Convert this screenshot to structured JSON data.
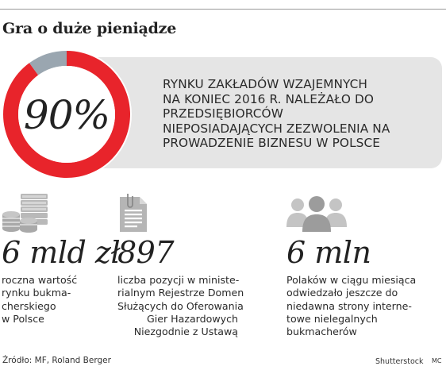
{
  "title": "Gra o duże pieniądze",
  "colors": {
    "accent": "#e8242b",
    "remainder": "#9aa6b0",
    "banner": "#e5e5e5"
  },
  "chart_data": {
    "type": "pie",
    "variant": "donut",
    "values": [
      90,
      10
    ],
    "label": "90%",
    "description_lines": [
      "RYNKU ZAKŁADÓW WZAJEMNYCH",
      "NA KONIEC 2016 R. NALEŻAŁO DO",
      "PRZEDSIĘBIORCÓW",
      "NIEPOSIADAJĄCYCH ZEZWOLENIA NA",
      "PROWADZENIE BIZNESU W POLSCE"
    ]
  },
  "stats": [
    {
      "icon": "money-stack-icon",
      "value": "6 mld zł",
      "desc_lines": [
        "roczna wartość",
        "rynku bukma-",
        "cherskiego",
        "w Polsce"
      ]
    },
    {
      "icon": "document-clip-icon",
      "value": "897",
      "desc_lines": [
        "liczba pozycji w ministe-",
        "rialnym Rejestrze Domen",
        "Służących do Oferowania",
        "Gier Hazardowych",
        "Niezgodnie z Ustawą"
      ]
    },
    {
      "icon": "people-group-icon",
      "value": "6 mln",
      "desc_lines": [
        "Polaków w ciągu miesiąca",
        "odwiedzało jeszcze do",
        "niedawna strony interne-",
        "towe nielegalnych",
        "bukmacherów"
      ]
    }
  ],
  "footer": {
    "source": "Źródło: MF, Roland Berger",
    "credit": "Shutterstock",
    "author": "MC"
  }
}
